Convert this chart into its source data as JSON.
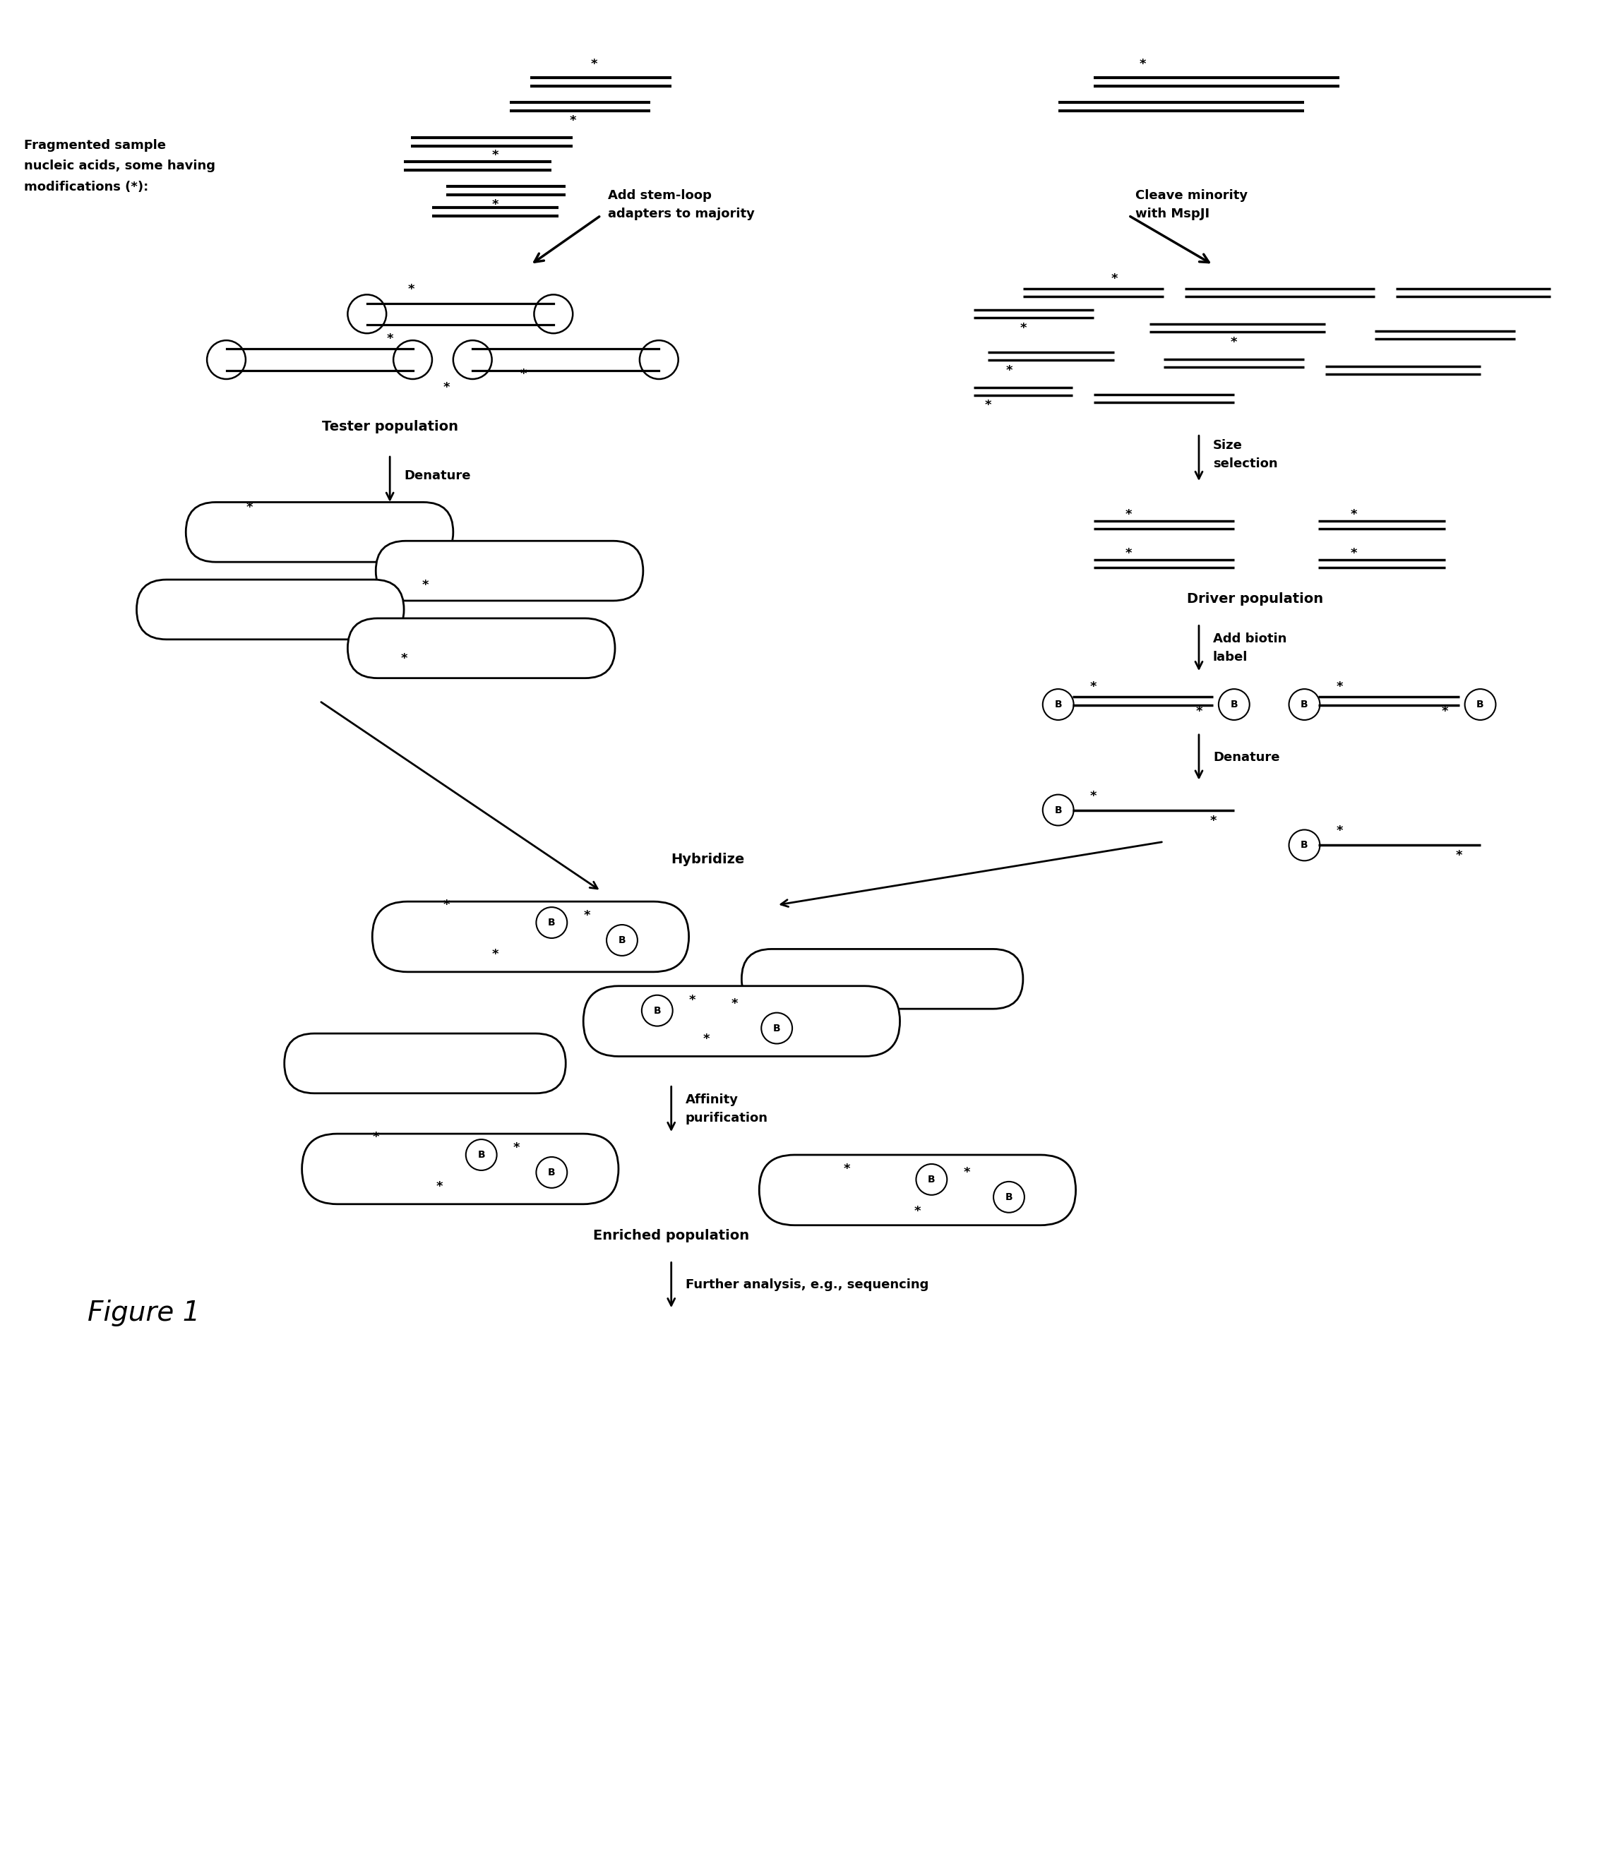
{
  "bg_color": "#ffffff",
  "text_color": "#000000",
  "line_color": "#000000",
  "fig_width": 22.93,
  "fig_height": 26.42,
  "title": "Figure 1",
  "labels": {
    "fragmented": "Fragmented sample\nnucleic acids, some having\nmodifications (*):",
    "add_stem_loop": "Add stem-loop\nadapters to majority",
    "cleave_minority": "Cleave minority\nwith MspJI",
    "tester_population": "Tester population",
    "denature_left": "Denature",
    "size_selection": "Size\nselection",
    "driver_population": "Driver population",
    "add_biotin": "Add biotin\nlabel",
    "denature_right": "Denature",
    "hybridize": "Hybridize",
    "affinity": "Affinity\npurification",
    "enriched": "Enriched population",
    "further": "Further analysis, e.g., sequencing"
  }
}
